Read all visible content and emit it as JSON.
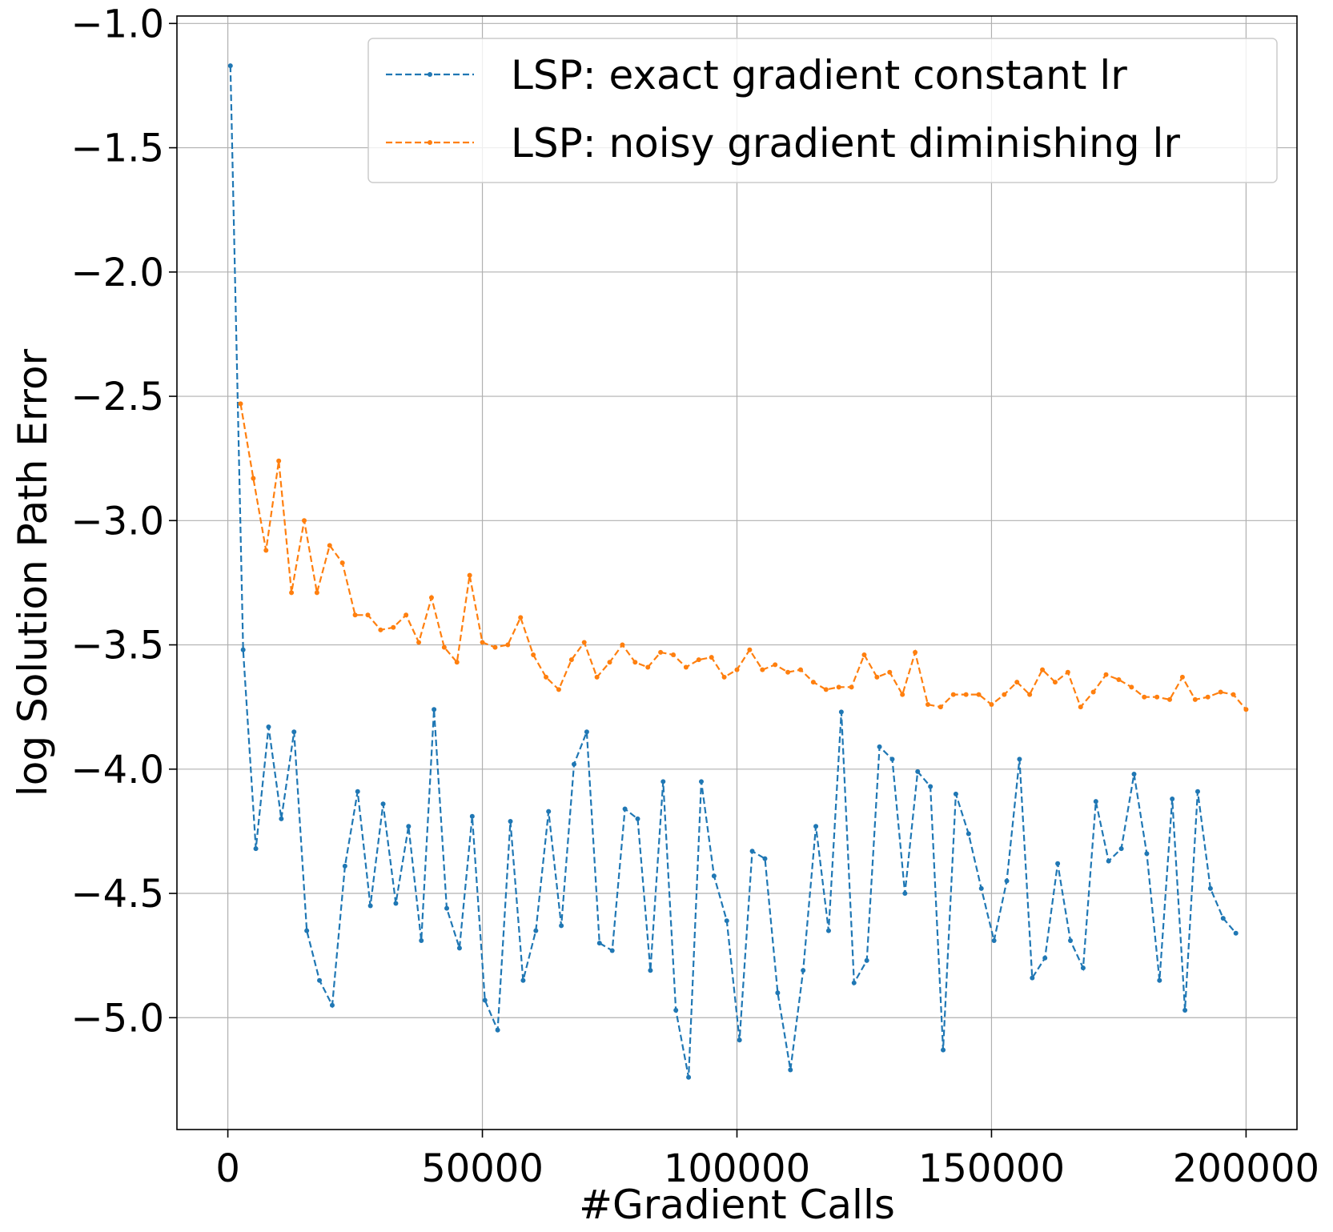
{
  "chart_data": {
    "type": "line",
    "xlabel": "#Gradient Calls",
    "ylabel": "log  Solution Path Error",
    "xlim": [
      -10000,
      210000
    ],
    "ylim": [
      -5.45,
      -0.97
    ],
    "xticks": [
      0,
      50000,
      100000,
      150000,
      200000
    ],
    "xtick_labels": [
      "0",
      "50000",
      "100000",
      "150000",
      "200000"
    ],
    "yticks": [
      -1.0,
      -1.5,
      -2.0,
      -2.5,
      -3.0,
      -3.5,
      -4.0,
      -4.5,
      -5.0
    ],
    "ytick_labels": [
      "−1.0",
      "−1.5",
      "−2.0",
      "−2.5",
      "−3.0",
      "−3.5",
      "−4.0",
      "−4.5",
      "−5.0"
    ],
    "grid": true,
    "legend_position": "top-right",
    "series": [
      {
        "name": "LSP: exact gradient constant lr",
        "color": "#1f77b4",
        "line_style": "dashed",
        "marker": "dot",
        "x": [
          500,
          3000,
          5500,
          8000,
          10500,
          13000,
          15500,
          18000,
          20500,
          23000,
          25500,
          28000,
          30500,
          33000,
          35500,
          38000,
          40500,
          43000,
          45500,
          48000,
          50500,
          53000,
          55500,
          58000,
          60500,
          63000,
          65500,
          68000,
          70500,
          73000,
          75500,
          78000,
          80500,
          83000,
          85500,
          88000,
          90500,
          93000,
          95500,
          98000,
          100500,
          103000,
          105500,
          108000,
          110500,
          113000,
          115500,
          118000,
          120500,
          123000,
          125500,
          128000,
          130500,
          133000,
          135500,
          138000,
          140500,
          143000,
          145500,
          148000,
          150500,
          153000,
          155500,
          158000,
          160500,
          163000,
          165500,
          168000,
          170500,
          173000,
          175500,
          178000,
          180500,
          183000,
          185500,
          188000,
          190500,
          193000,
          195500,
          198000
        ],
        "y": [
          -1.17,
          -3.52,
          -4.32,
          -3.83,
          -4.2,
          -3.85,
          -4.65,
          -4.85,
          -4.95,
          -4.39,
          -4.09,
          -4.55,
          -4.14,
          -4.54,
          -4.23,
          -4.69,
          -3.76,
          -4.56,
          -4.72,
          -4.19,
          -4.93,
          -5.05,
          -4.21,
          -4.85,
          -4.65,
          -4.17,
          -4.63,
          -3.98,
          -3.85,
          -4.7,
          -4.73,
          -4.16,
          -4.2,
          -4.81,
          -4.05,
          -4.97,
          -5.24,
          -4.05,
          -4.43,
          -4.61,
          -5.09,
          -4.33,
          -4.36,
          -4.9,
          -5.21,
          -4.81,
          -4.23,
          -4.65,
          -3.77,
          -4.86,
          -4.77,
          -3.91,
          -3.96,
          -4.5,
          -4.01,
          -4.07,
          -5.13,
          -4.1,
          -4.26,
          -4.48,
          -4.69,
          -4.45,
          -3.96,
          -4.84,
          -4.76,
          -4.38,
          -4.69,
          -4.8,
          -4.13,
          -4.37,
          -4.32,
          -4.02,
          -4.34,
          -4.85,
          -4.12,
          -4.97,
          -4.09,
          -4.48,
          -4.6,
          -4.66
        ]
      },
      {
        "name": "LSP: noisy gradient diminishing lr",
        "color": "#ff7f0e",
        "line_style": "dashed",
        "marker": "dot",
        "x": [
          2500,
          5000,
          7500,
          10000,
          12500,
          15000,
          17500,
          20000,
          22500,
          25000,
          27500,
          30000,
          32500,
          35000,
          37500,
          40000,
          42500,
          45000,
          47500,
          50000,
          52500,
          55000,
          57500,
          60000,
          62500,
          65000,
          67500,
          70000,
          72500,
          75000,
          77500,
          80000,
          82500,
          85000,
          87500,
          90000,
          92500,
          95000,
          97500,
          100000,
          102500,
          105000,
          107500,
          110000,
          112500,
          115000,
          117500,
          120000,
          122500,
          125000,
          127500,
          130000,
          132500,
          135000,
          137500,
          140000,
          142500,
          145000,
          147500,
          150000,
          152500,
          155000,
          157500,
          160000,
          162500,
          165000,
          167500,
          170000,
          172500,
          175000,
          177500,
          180000,
          182500,
          185000,
          187500,
          190000,
          192500,
          195000,
          197500,
          200000
        ],
        "y": [
          -2.53,
          -2.83,
          -3.12,
          -2.76,
          -3.29,
          -3.0,
          -3.29,
          -3.1,
          -3.17,
          -3.38,
          -3.38,
          -3.44,
          -3.43,
          -3.38,
          -3.49,
          -3.31,
          -3.51,
          -3.57,
          -3.22,
          -3.49,
          -3.51,
          -3.5,
          -3.39,
          -3.54,
          -3.63,
          -3.68,
          -3.56,
          -3.49,
          -3.63,
          -3.57,
          -3.5,
          -3.57,
          -3.59,
          -3.53,
          -3.54,
          -3.59,
          -3.56,
          -3.55,
          -3.63,
          -3.6,
          -3.52,
          -3.6,
          -3.58,
          -3.61,
          -3.6,
          -3.65,
          -3.68,
          -3.67,
          -3.67,
          -3.54,
          -3.63,
          -3.61,
          -3.7,
          -3.53,
          -3.74,
          -3.75,
          -3.7,
          -3.7,
          -3.7,
          -3.74,
          -3.7,
          -3.65,
          -3.7,
          -3.6,
          -3.65,
          -3.61,
          -3.75,
          -3.69,
          -3.62,
          -3.64,
          -3.67,
          -3.71,
          -3.71,
          -3.72,
          -3.63,
          -3.72,
          -3.71,
          -3.69,
          -3.7,
          -3.76
        ]
      }
    ]
  }
}
